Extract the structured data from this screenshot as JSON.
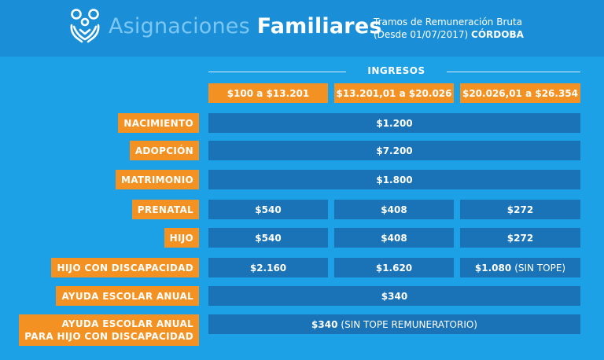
{
  "header": {
    "title_light": "Asignaciones",
    "title_bold": "Familiares",
    "subtitle_line1": "Tramos de Remuneración Bruta",
    "subtitle_line2": "(Desde 01/07/2017)",
    "subtitle_place": "CÓRDOBA",
    "logo_icon": "family-icon"
  },
  "ingresos_label": "INGRESOS",
  "ranges": [
    "$100 a $13.201",
    "$13.201,01  a $20.026",
    "$20.026,01 a $26.354"
  ],
  "rows": [
    {
      "label": "NACIMIENTO",
      "value": "$1.200"
    },
    {
      "label": "ADOPCIÓN",
      "value": "$7.200"
    },
    {
      "label": "MATRIMONIO",
      "value": "$1.800"
    },
    {
      "label": "PRENATAL",
      "values": [
        "$540",
        "$408",
        "$272"
      ]
    },
    {
      "label": "HIJO",
      "values": [
        "$540",
        "$408",
        "$272"
      ]
    },
    {
      "label": "HIJO CON DISCAPACIDAD",
      "values": [
        "$2.160",
        "$1.620",
        "$1.080"
      ],
      "note": "(SIN TOPE)"
    },
    {
      "label": "AYUDA ESCOLAR ANUAL",
      "value": "$340"
    },
    {
      "label_line1": "AYUDA ESCOLAR ANUAL",
      "label_line2": "PARA HIJO CON DISCAPACIDAD",
      "value": "$340",
      "note": "(SIN TOPE REMUNERATORIO)"
    }
  ],
  "colors": {
    "background": "#1da1e6",
    "header": "#1a8fd8",
    "orange": "#f39222",
    "cell": "#1a73b6"
  }
}
